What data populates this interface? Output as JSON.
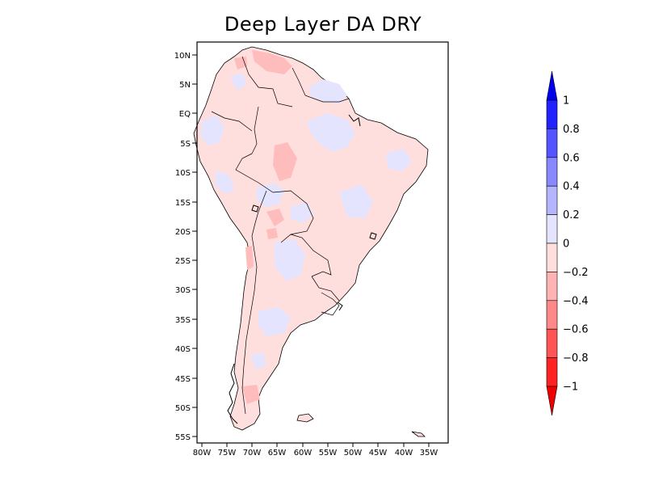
{
  "title": "Deep Layer DA DRY",
  "map": {
    "region": "South America",
    "lat_ticks": [
      "10N",
      "5N",
      "EQ",
      "5S",
      "10S",
      "15S",
      "20S",
      "25S",
      "30S",
      "35S",
      "40S",
      "45S",
      "50S",
      "55S"
    ],
    "lon_ticks": [
      "80W",
      "75W",
      "70W",
      "65W",
      "60W",
      "55W",
      "50W",
      "45W",
      "40W",
      "35W"
    ],
    "land_color": "#ffdede",
    "positive_patch_color": "#e4e4ff",
    "negative_patch_color": "#ffbcbc"
  },
  "colorbar": {
    "labels": [
      "1",
      "0.8",
      "0.6",
      "0.4",
      "0.2",
      "0",
      "−0.2",
      "−0.4",
      "−0.6",
      "−0.8",
      "−1"
    ],
    "colors": [
      "#2222ff",
      "#5555ff",
      "#8888ff",
      "#b4b4ff",
      "#e4e4ff",
      "#ffdede",
      "#ffb4b4",
      "#ff8888",
      "#ff5555",
      "#ff2222"
    ],
    "top_arrow_color": "#0000ee",
    "bottom_arrow_color": "#ee0000"
  }
}
